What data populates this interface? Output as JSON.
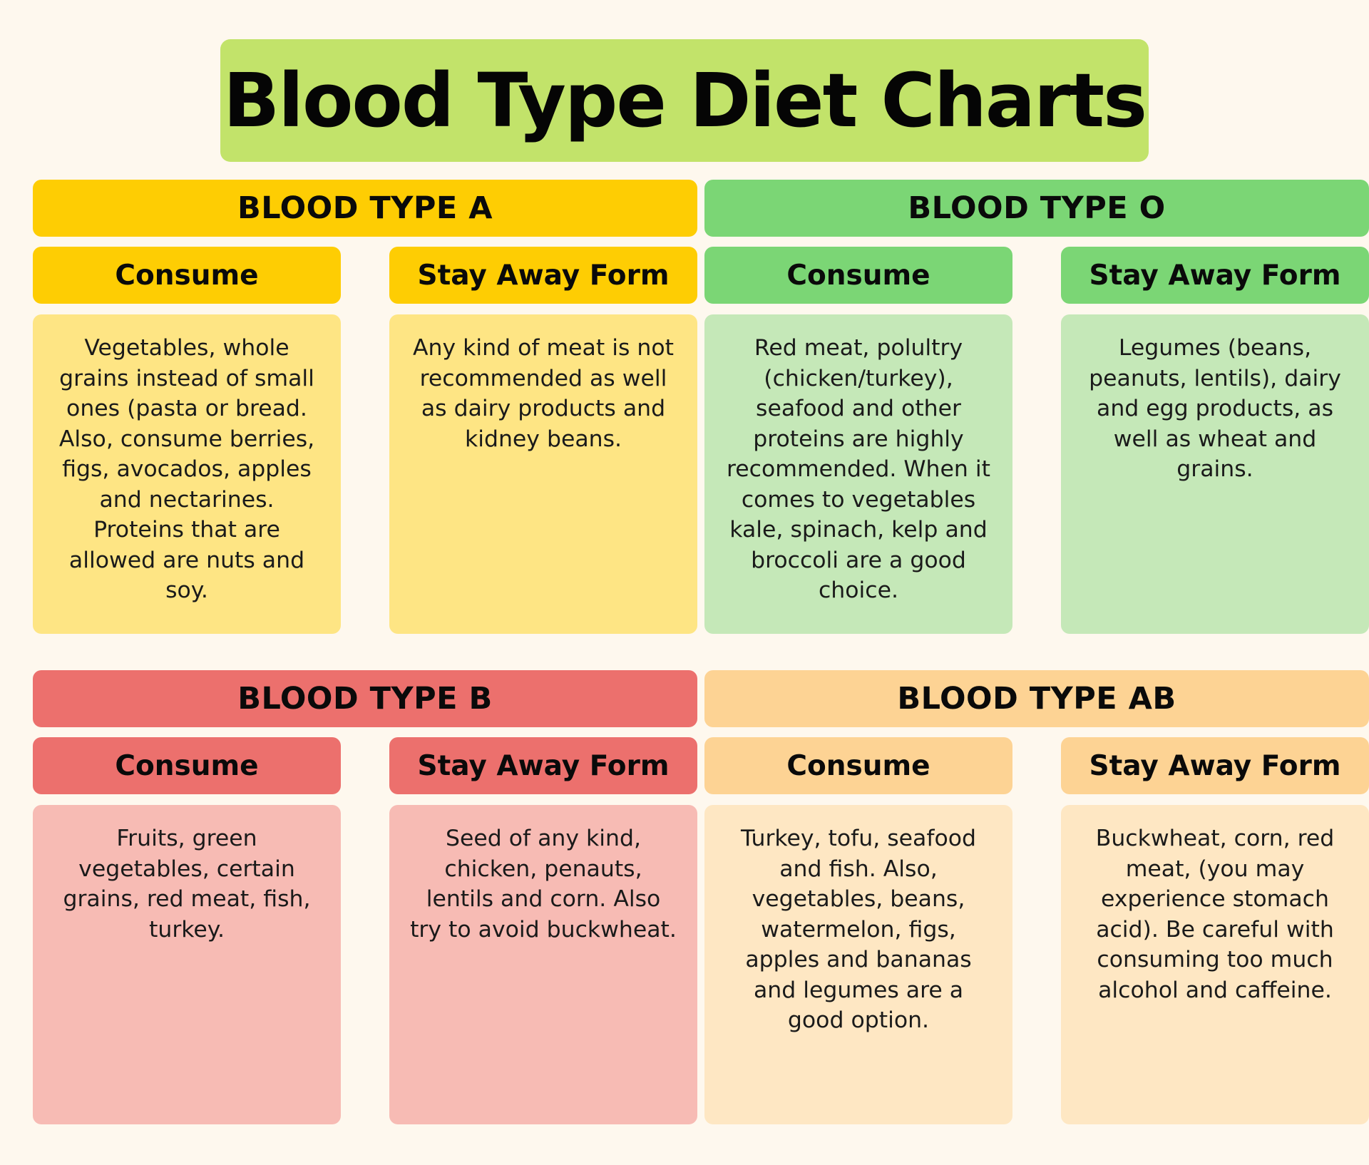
{
  "title": "Blood Type Diet Charts",
  "colors": {
    "background": "#fef8ee",
    "title_bg": "#c2e36a",
    "type_a_header": "#fecd03",
    "type_a_body": "#fee584",
    "type_o_header": "#7bd675",
    "type_o_body": "#c5e8b8",
    "type_b_header": "#ec706d",
    "type_b_body": "#f7bbb4",
    "type_ab_header": "#fdd394",
    "type_ab_body": "#fee7c3"
  },
  "panels": [
    {
      "title": "BLOOD TYPE A",
      "consume_label": "Consume",
      "avoid_label": "Stay Away Form",
      "consume_text": "Vegetables, whole grains instead of small ones (pasta or bread. Also, consume berries, figs, avocados, apples and nectarines. Proteins that are allowed are nuts and soy.",
      "avoid_text": "Any kind of meat is not recommended as well as dairy products and kidney beans."
    },
    {
      "title": "BLOOD TYPE O",
      "consume_label": "Consume",
      "avoid_label": "Stay Away Form",
      "consume_text": "Red meat, polultry (chicken/turkey), seafood and other proteins are highly recommended. When it comes to vegetables kale, spinach, kelp and broccoli are a good choice.",
      "avoid_text": "Legumes (beans, peanuts, lentils), dairy and egg products, as well as wheat and grains."
    },
    {
      "title": "BLOOD TYPE B",
      "consume_label": "Consume",
      "avoid_label": "Stay Away Form",
      "consume_text": "Fruits, green vegetables, certain grains, red meat, fish, turkey.",
      "avoid_text": "Seed of any kind, chicken, penauts, lentils and corn. Also try to avoid buckwheat."
    },
    {
      "title": "BLOOD TYPE AB",
      "consume_label": "Consume",
      "avoid_label": "Stay Away Form",
      "consume_text": "Turkey, tofu, seafood and fish. Also, vegetables, beans, watermelon, figs, apples and bananas and legumes are a good option.",
      "avoid_text": "Buckwheat, corn, red meat, (you may experience stomach acid). Be careful with consuming too much alcohol and caffeine."
    }
  ]
}
